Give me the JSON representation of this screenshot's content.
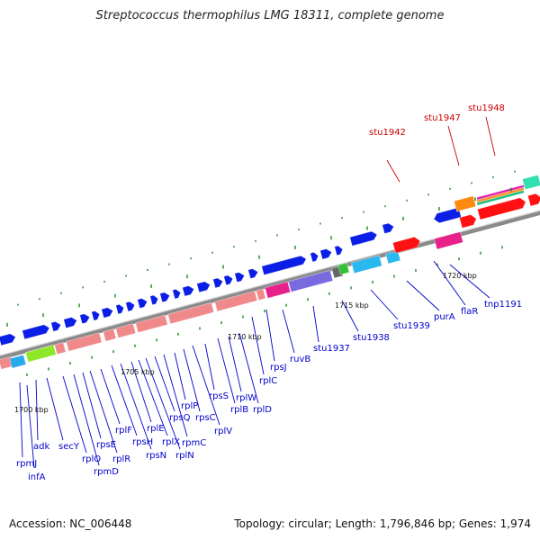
{
  "title": "Streptococcus thermophilus LMG 18311, complete genome",
  "footer": {
    "accession": "Accession: NC_006448",
    "summary": "Topology: circular; Length: 1,796,846 bp; Genes: 1,974"
  },
  "colors": {
    "forward_gene": "#0a1ee6",
    "reverse_gene": "#f08a8a",
    "highlight": "#ff1111",
    "label_blue": "#0000cc",
    "label_red": "#cc0000",
    "backbone": "#888888",
    "tick": "#1a8a1a"
  },
  "scale_labels": [
    "1700 kbp",
    "1705 kbp",
    "1710 kbp",
    "1715 kbp",
    "1720 kbp"
  ],
  "gene_labels_blue": [
    "rpmJ",
    "infA",
    "adk",
    "secY",
    "rplO",
    "rpmD",
    "rpsE",
    "rplR",
    "rplF",
    "rpsH",
    "rpsN",
    "rplE",
    "rplX",
    "rplN",
    "rpsQ",
    "rpmC",
    "rplP",
    "rpsC",
    "rplV",
    "rpsS",
    "rplB",
    "rplW",
    "rplD",
    "rplC",
    "rpsJ",
    "ruvB",
    "stu1937",
    "stu1938",
    "stu1939",
    "purA",
    "flaR",
    "tnp1191"
  ],
  "gene_labels_red": [
    "stu1942",
    "stu1947",
    "stu1948"
  ]
}
